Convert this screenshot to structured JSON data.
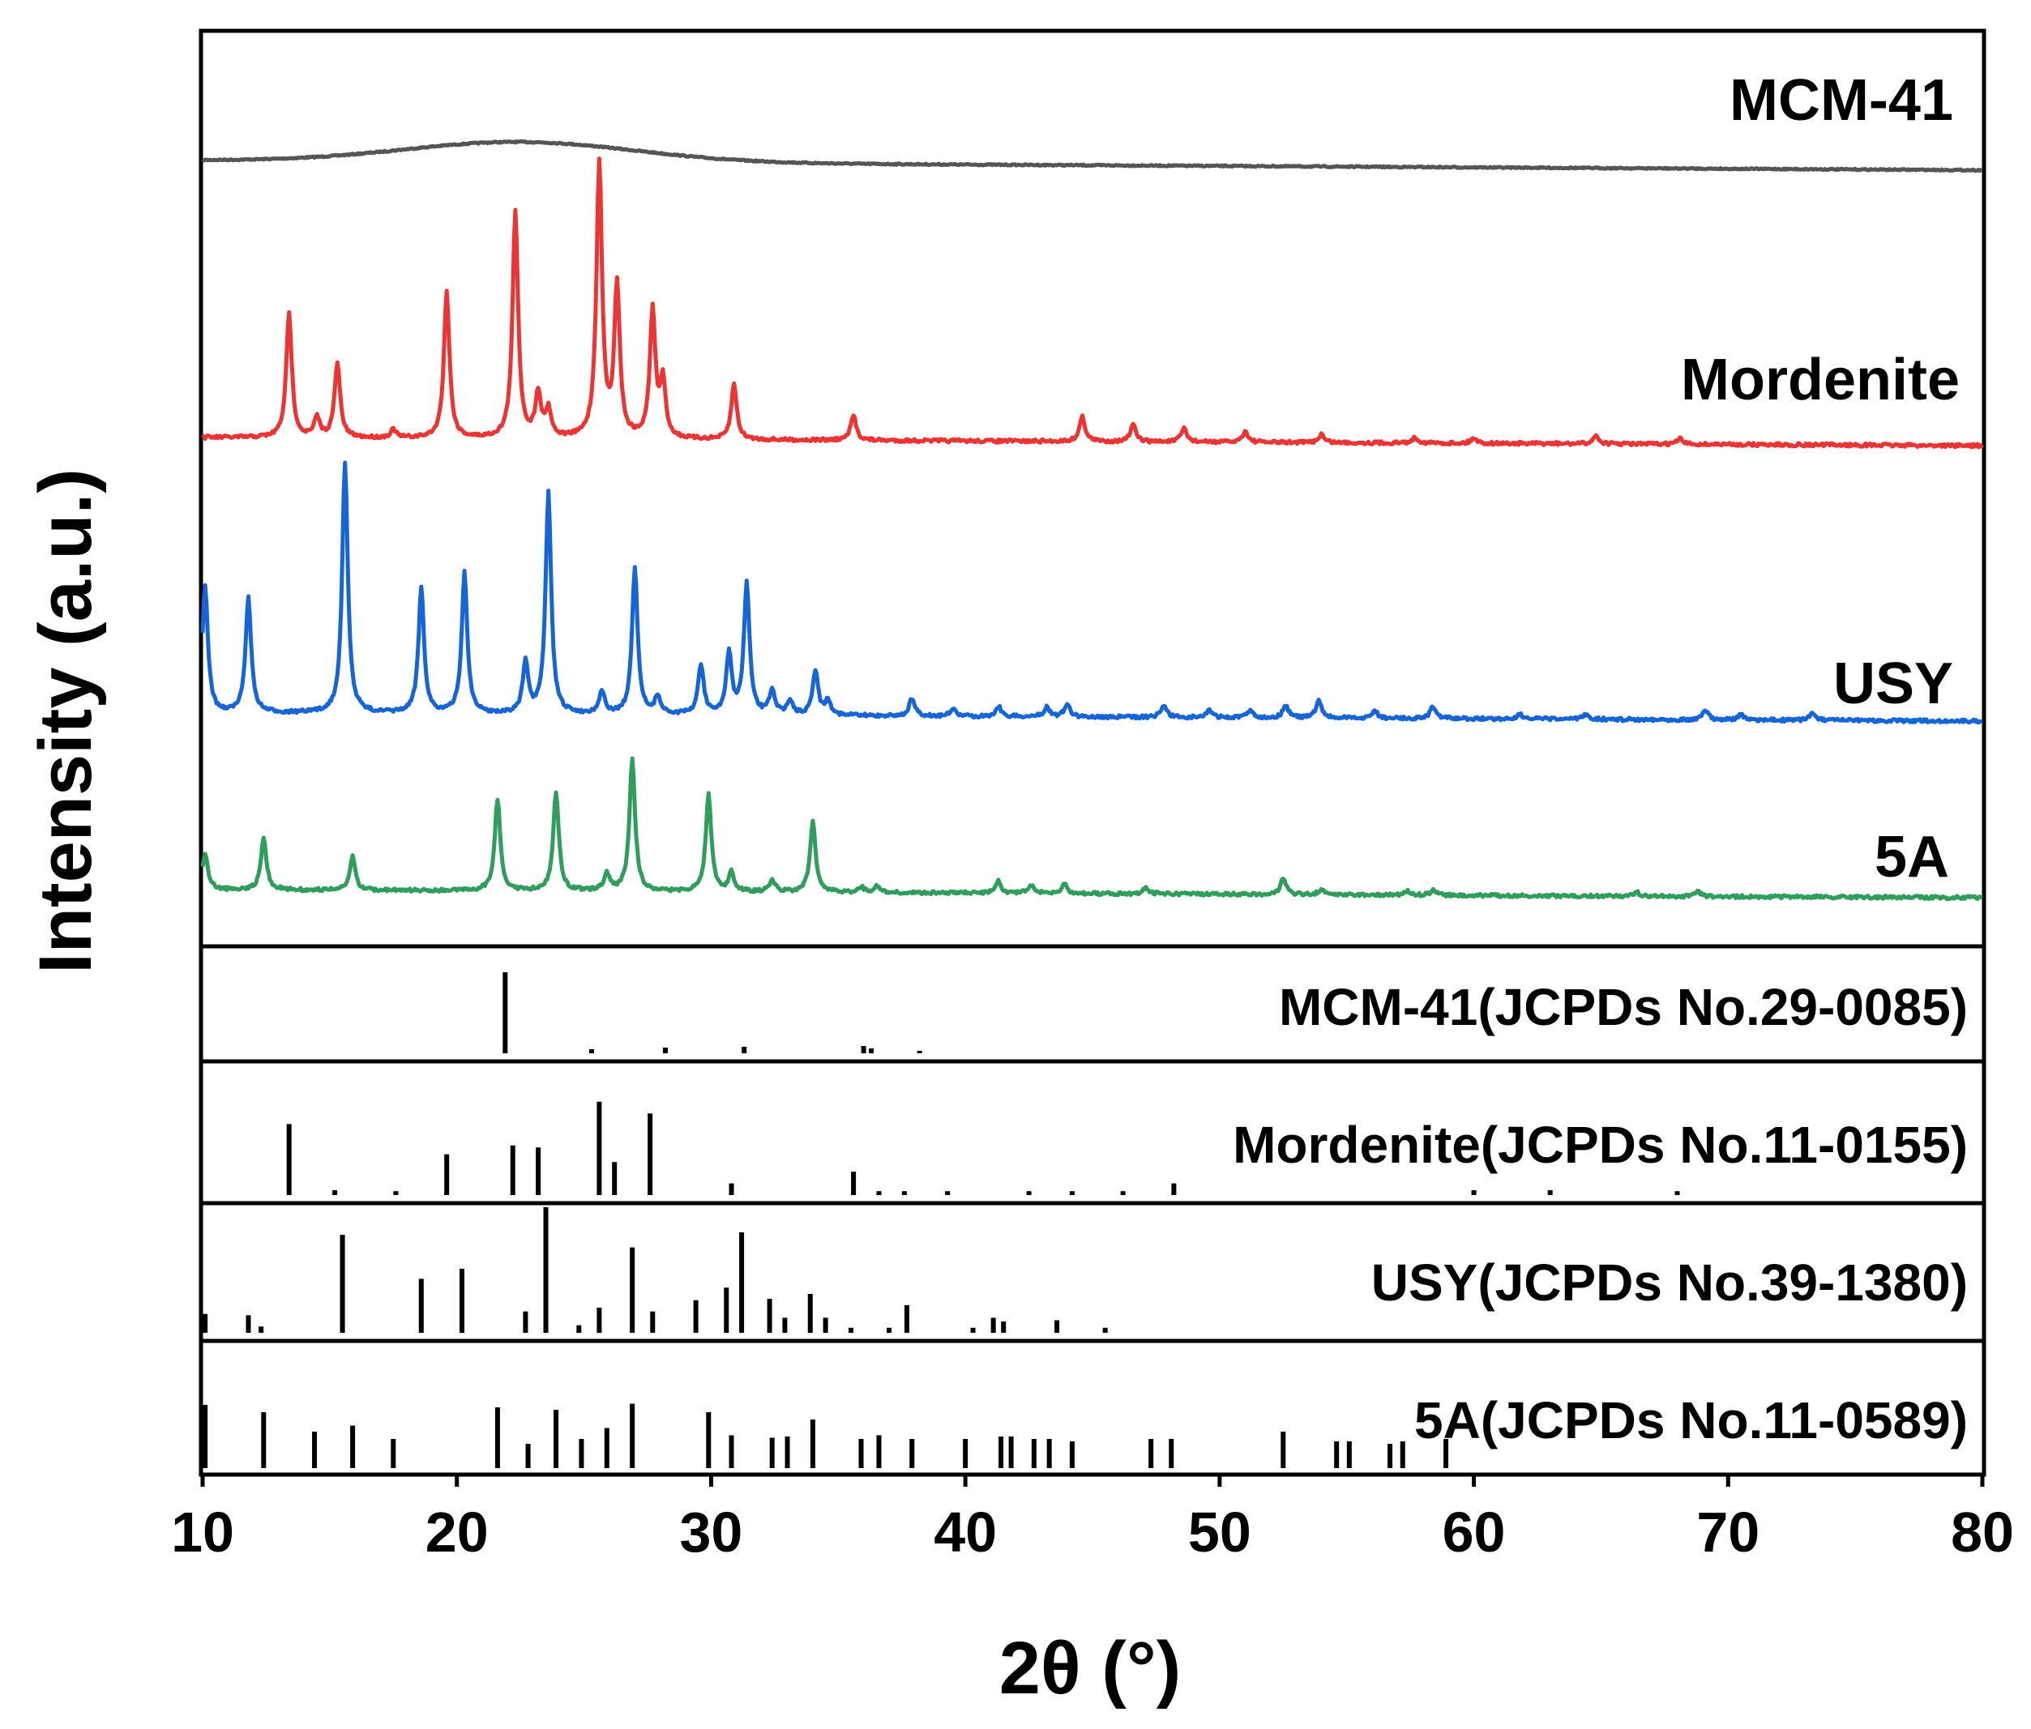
{
  "chart_data": {
    "type": "line",
    "title": "",
    "xlabel": "2θ (°)",
    "ylabel": "Intensity (a.u.)",
    "xlim": [
      10,
      80
    ],
    "xticks": [
      "10",
      "20",
      "30",
      "40",
      "50",
      "60",
      "70",
      "80"
    ],
    "ylim_units": "a.u. (stacked, offset)",
    "colors": {
      "MCM-41": "#555555",
      "Mordenite": "#ee3333",
      "USY": "#1565d8",
      "5A": "#2e9e5a",
      "axes": "#000000"
    },
    "series": [
      {
        "name": "MCM-41",
        "label": "MCM-41",
        "color": "#555555",
        "baseline": 0,
        "broad_hump": {
          "center": 22.5,
          "width": 4.5,
          "height": 0.07
        },
        "peaks": []
      },
      {
        "name": "Mordenite",
        "label": "Mordenite",
        "color": "#ee3333",
        "peaks": [
          [
            13.4,
            0.45
          ],
          [
            14.5,
            0.07
          ],
          [
            15.3,
            0.27
          ],
          [
            17.5,
            0.03
          ],
          [
            19.6,
            0.53
          ],
          [
            22.3,
            0.82
          ],
          [
            23.2,
            0.16
          ],
          [
            23.6,
            0.1
          ],
          [
            25.6,
            1.0
          ],
          [
            26.3,
            0.55
          ],
          [
            27.7,
            0.46
          ],
          [
            28.1,
            0.2
          ],
          [
            30.9,
            0.2
          ],
          [
            35.6,
            0.09
          ],
          [
            44.6,
            0.09
          ],
          [
            46.6,
            0.06
          ],
          [
            48.6,
            0.05
          ],
          [
            51.0,
            0.04
          ],
          [
            54.0,
            0.03
          ],
          [
            57.7,
            0.02
          ],
          [
            60.0,
            0.02
          ],
          [
            64.8,
            0.03
          ],
          [
            68.1,
            0.02
          ]
        ]
      },
      {
        "name": "USY",
        "label": "USY",
        "color": "#1565d8",
        "peaks": [
          [
            10.1,
            0.5
          ],
          [
            11.8,
            0.46
          ],
          [
            15.6,
            1.0
          ],
          [
            18.6,
            0.5
          ],
          [
            20.3,
            0.56
          ],
          [
            22.7,
            0.2
          ],
          [
            23.6,
            0.88
          ],
          [
            25.7,
            0.09
          ],
          [
            27.0,
            0.58
          ],
          [
            27.9,
            0.07
          ],
          [
            29.6,
            0.2
          ],
          [
            30.7,
            0.24
          ],
          [
            31.4,
            0.52
          ],
          [
            32.4,
            0.1
          ],
          [
            33.1,
            0.06
          ],
          [
            34.1,
            0.18
          ],
          [
            34.6,
            0.06
          ],
          [
            37.9,
            0.07
          ],
          [
            39.5,
            0.03
          ],
          [
            41.3,
            0.04
          ],
          [
            43.2,
            0.04
          ],
          [
            44.0,
            0.05
          ],
          [
            47.8,
            0.05
          ],
          [
            49.6,
            0.03
          ],
          [
            51.2,
            0.03
          ],
          [
            52.6,
            0.05
          ],
          [
            53.9,
            0.07
          ],
          [
            56.1,
            0.03
          ],
          [
            58.4,
            0.05
          ],
          [
            61.8,
            0.02
          ],
          [
            64.4,
            0.02
          ],
          [
            69.1,
            0.04
          ],
          [
            70.5,
            0.02
          ],
          [
            73.3,
            0.03
          ]
        ]
      },
      {
        "name": "5A",
        "label": "5A",
        "color": "#2e9e5a",
        "peaks": [
          [
            10.1,
            0.27
          ],
          [
            12.4,
            0.38
          ],
          [
            15.9,
            0.25
          ],
          [
            21.6,
            0.69
          ],
          [
            23.9,
            0.74
          ],
          [
            25.9,
            0.13
          ],
          [
            26.9,
            1.0
          ],
          [
            29.9,
            0.73
          ],
          [
            30.8,
            0.14
          ],
          [
            32.4,
            0.09
          ],
          [
            34.0,
            0.53
          ],
          [
            35.9,
            0.04
          ],
          [
            36.5,
            0.05
          ],
          [
            41.3,
            0.09
          ],
          [
            42.6,
            0.06
          ],
          [
            43.9,
            0.07
          ],
          [
            47.1,
            0.05
          ],
          [
            52.5,
            0.12
          ],
          [
            54.0,
            0.04
          ],
          [
            57.4,
            0.03
          ],
          [
            58.4,
            0.04
          ],
          [
            66.4,
            0.03
          ],
          [
            68.8,
            0.04
          ]
        ]
      }
    ],
    "references": [
      {
        "name": "MCM-41(JCPDs No.29-0085)",
        "label": "MCM-41(JCPDs No.29-0085)",
        "sticks": [
          [
            21.9,
            1.0
          ],
          [
            25.3,
            0.05
          ],
          [
            28.2,
            0.07
          ],
          [
            31.3,
            0.08
          ],
          [
            36.0,
            0.09
          ],
          [
            36.3,
            0.06
          ],
          [
            38.2,
            0.03
          ]
        ]
      },
      {
        "name": "Mordenite(JCPDs No.11-0155)",
        "label": "Mordenite(JCPDs No.11-0155)",
        "sticks": [
          [
            13.4,
            0.73
          ],
          [
            15.2,
            0.05
          ],
          [
            17.6,
            0.04
          ],
          [
            19.6,
            0.42
          ],
          [
            22.2,
            0.51
          ],
          [
            23.2,
            0.49
          ],
          [
            25.6,
            0.96
          ],
          [
            26.2,
            0.34
          ],
          [
            27.6,
            0.84
          ],
          [
            30.8,
            0.12
          ],
          [
            35.6,
            0.24
          ],
          [
            36.6,
            0.04
          ],
          [
            37.6,
            0.04
          ],
          [
            39.3,
            0.04
          ],
          [
            42.5,
            0.04
          ],
          [
            44.2,
            0.04
          ],
          [
            46.2,
            0.04
          ],
          [
            48.2,
            0.12
          ],
          [
            60.0,
            0.05
          ],
          [
            63.0,
            0.05
          ],
          [
            68.0,
            0.04
          ]
        ]
      },
      {
        "name": "USY(JCPDs No.39-1380)",
        "label": "USY(JCPDs No.39-1380)",
        "sticks": [
          [
            10.1,
            0.15
          ],
          [
            11.8,
            0.14
          ],
          [
            12.3,
            0.05
          ],
          [
            15.5,
            0.78
          ],
          [
            18.6,
            0.43
          ],
          [
            20.2,
            0.51
          ],
          [
            22.7,
            0.17
          ],
          [
            23.5,
            1.0
          ],
          [
            24.8,
            0.06
          ],
          [
            25.6,
            0.2
          ],
          [
            26.9,
            0.68
          ],
          [
            27.7,
            0.17
          ],
          [
            29.4,
            0.26
          ],
          [
            30.6,
            0.36
          ],
          [
            31.2,
            0.8
          ],
          [
            32.3,
            0.27
          ],
          [
            32.9,
            0.12
          ],
          [
            33.9,
            0.31
          ],
          [
            34.5,
            0.12
          ],
          [
            35.5,
            0.04
          ],
          [
            37.0,
            0.04
          ],
          [
            37.7,
            0.22
          ],
          [
            40.3,
            0.04
          ],
          [
            41.1,
            0.12
          ],
          [
            41.5,
            0.09
          ],
          [
            43.6,
            0.1
          ],
          [
            45.5,
            0.04
          ]
        ]
      },
      {
        "name": "5A(JCPDs No.11-0589)",
        "label": "5A(JCPDs No.11-0589)",
        "sticks": [
          [
            10.1,
            0.52
          ],
          [
            12.4,
            0.46
          ],
          [
            14.4,
            0.3
          ],
          [
            15.9,
            0.35
          ],
          [
            17.5,
            0.24
          ],
          [
            21.6,
            0.5
          ],
          [
            22.8,
            0.2
          ],
          [
            23.9,
            0.48
          ],
          [
            24.9,
            0.24
          ],
          [
            25.9,
            0.33
          ],
          [
            26.9,
            0.53
          ],
          [
            29.9,
            0.46
          ],
          [
            30.8,
            0.27
          ],
          [
            32.4,
            0.25
          ],
          [
            33.0,
            0.26
          ],
          [
            34.0,
            0.4
          ],
          [
            35.9,
            0.24
          ],
          [
            36.6,
            0.27
          ],
          [
            37.9,
            0.24
          ],
          [
            40.0,
            0.24
          ],
          [
            41.4,
            0.26
          ],
          [
            41.8,
            0.26
          ],
          [
            42.7,
            0.24
          ],
          [
            43.3,
            0.24
          ],
          [
            44.2,
            0.22
          ],
          [
            47.3,
            0.24
          ],
          [
            48.1,
            0.24
          ],
          [
            52.5,
            0.3
          ],
          [
            54.6,
            0.22
          ],
          [
            55.1,
            0.22
          ],
          [
            56.7,
            0.2
          ],
          [
            57.2,
            0.22
          ],
          [
            58.9,
            0.24
          ]
        ]
      }
    ]
  }
}
